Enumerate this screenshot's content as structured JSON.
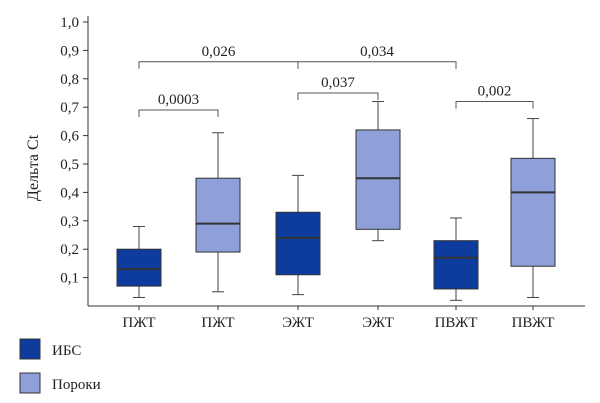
{
  "chart_data": {
    "type": "boxplot",
    "ylabel": "Дельта Ct",
    "ylim": [
      0.0,
      1.0
    ],
    "yticks": [
      "0,1",
      "0,2",
      "0,3",
      "0,4",
      "0,5",
      "0,6",
      "0,7",
      "0,8",
      "0,9",
      "1,0"
    ],
    "categories": [
      "ПЖТ",
      "ПЖТ",
      "ЭЖТ",
      "ЭЖТ",
      "ПВЖТ",
      "ПВЖТ"
    ],
    "boxes": [
      {
        "group": "ИБС",
        "min": 0.03,
        "q1": 0.07,
        "median": 0.13,
        "q3": 0.2,
        "max": 0.28
      },
      {
        "group": "Пороки",
        "min": 0.05,
        "q1": 0.19,
        "median": 0.29,
        "q3": 0.45,
        "max": 0.61
      },
      {
        "group": "ИБС",
        "min": 0.04,
        "q1": 0.11,
        "median": 0.24,
        "q3": 0.33,
        "max": 0.46
      },
      {
        "group": "Пороки",
        "min": 0.23,
        "q1": 0.27,
        "median": 0.45,
        "q3": 0.62,
        "max": 0.72
      },
      {
        "group": "ИБС",
        "min": 0.02,
        "q1": 0.06,
        "median": 0.17,
        "q3": 0.23,
        "max": 0.31
      },
      {
        "group": "Пороки",
        "min": 0.03,
        "q1": 0.14,
        "median": 0.4,
        "q3": 0.52,
        "max": 0.66
      }
    ],
    "comparisons": [
      {
        "from": 0,
        "to": 1,
        "y": 0.69,
        "label": "0,0003"
      },
      {
        "from": 0,
        "to": 2,
        "y": 0.86,
        "label": "0,026"
      },
      {
        "from": 2,
        "to": 3,
        "y": 0.75,
        "label": "0,037"
      },
      {
        "from": 2,
        "to": 4,
        "y": 0.86,
        "label": "0,034"
      },
      {
        "from": 4,
        "to": 5,
        "y": 0.72,
        "label": "0,002"
      }
    ],
    "legend": [
      {
        "name": "ИБС",
        "color": "#0d3b9e"
      },
      {
        "name": "Пороки",
        "color": "#8f9fd9"
      }
    ],
    "legend_position": "bottom-left",
    "grid": false
  }
}
